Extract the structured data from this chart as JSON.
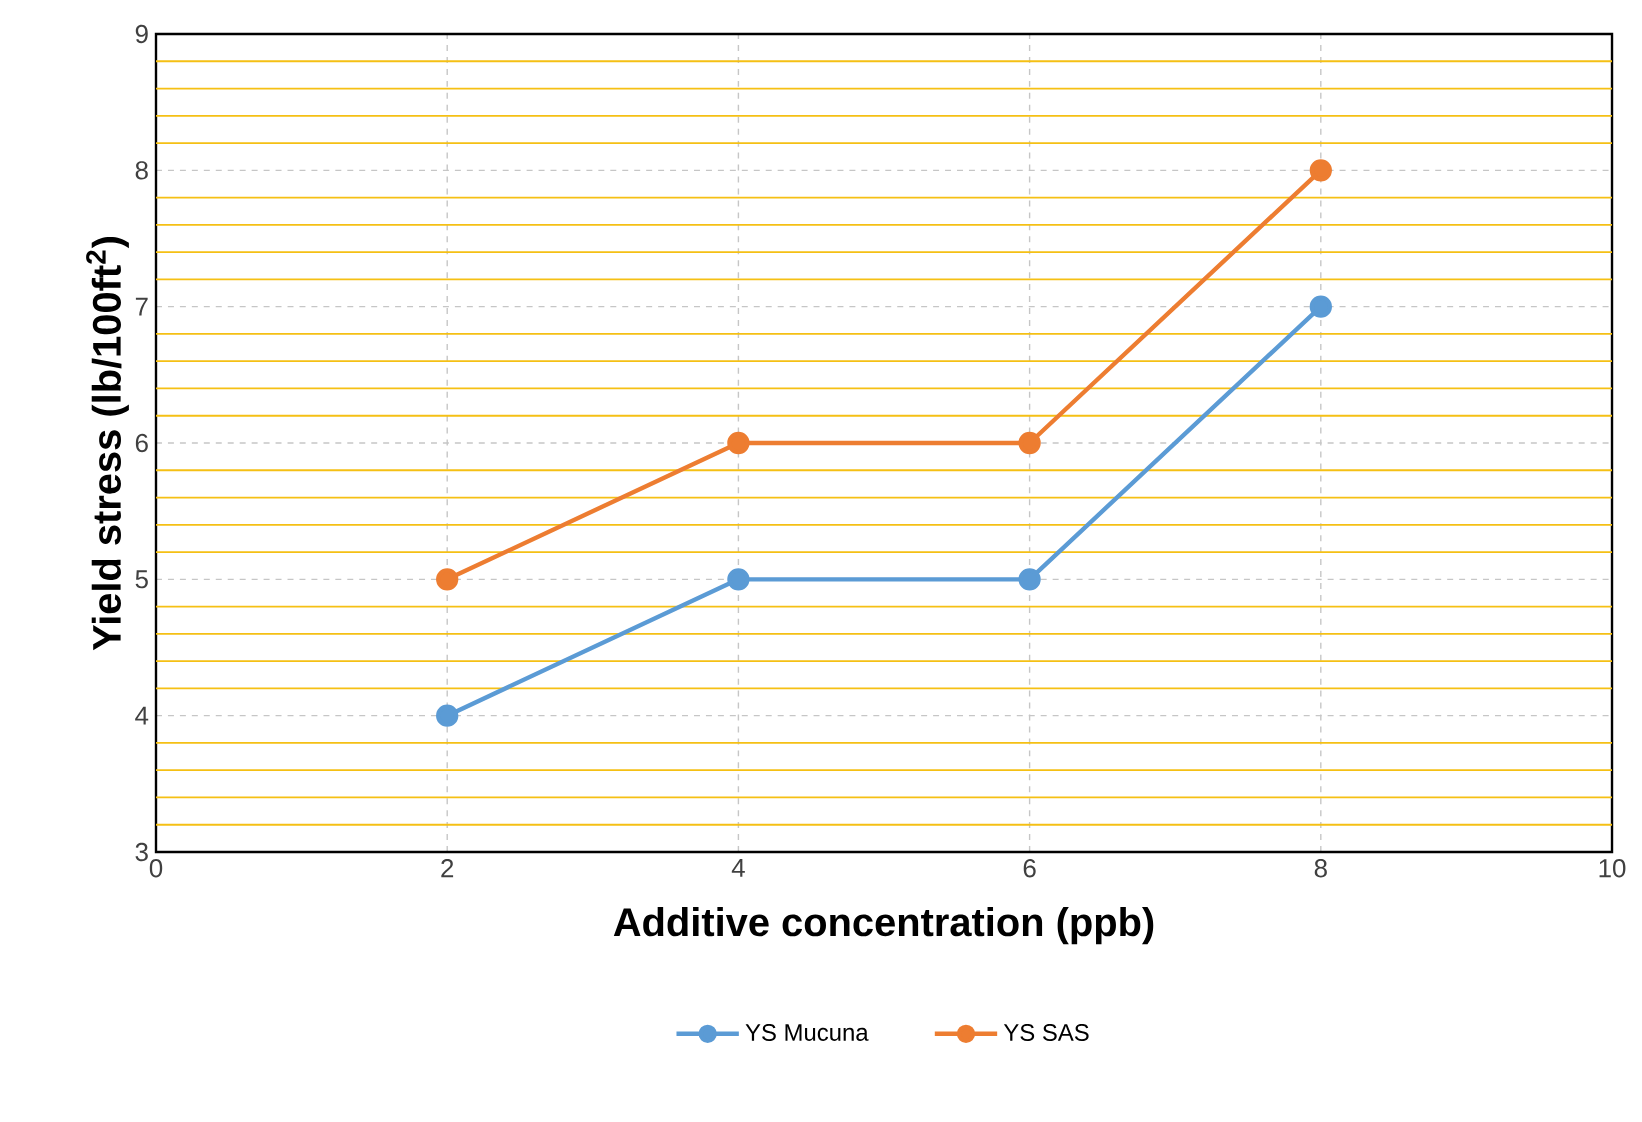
{
  "chart_data": {
    "type": "line",
    "xlabel": "Additive concentration (ppb)",
    "ylabel": "Yield stress (lb/100ft$^{2}$)",
    "x": [
      2,
      4,
      6,
      8
    ],
    "series": [
      {
        "name": "YS Mucuna",
        "color": "#5b9bd5",
        "values": [
          4,
          5,
          5,
          7
        ]
      },
      {
        "name": "YS SAS",
        "color": "#ed7d31",
        "values": [
          5,
          6,
          6,
          8
        ]
      }
    ],
    "xlim": [
      0,
      10
    ],
    "ylim": [
      3,
      9
    ],
    "xticks": [
      0,
      2,
      4,
      6,
      8,
      10
    ],
    "yticks": [
      3,
      {
        "value": 3.2,
        "label": null
      },
      {
        "value": 3.4,
        "label": null
      },
      {
        "value": 3.6,
        "label": null
      },
      {
        "value": 3.8,
        "label": null
      },
      4,
      {
        "value": 4.2,
        "label": null
      },
      {
        "value": 4.4,
        "label": null
      },
      {
        "value": 4.6,
        "label": null
      },
      {
        "value": 4.8,
        "label": null
      },
      5,
      {
        "value": 5.2,
        "label": null
      },
      {
        "value": 5.4,
        "label": null
      },
      {
        "value": 5.6,
        "label": null
      },
      {
        "value": 5.8,
        "label": null
      },
      6,
      {
        "value": 6.2,
        "label": null
      },
      {
        "value": 6.4,
        "label": null
      },
      {
        "value": 6.6,
        "label": null
      },
      {
        "value": 6.8,
        "label": null
      },
      7,
      {
        "value": 7.2,
        "label": null
      },
      {
        "value": 7.4,
        "label": null
      },
      {
        "value": 7.6,
        "label": null
      },
      {
        "value": 7.8,
        "label": null
      },
      8,
      {
        "value": 8.2,
        "label": null
      },
      {
        "value": 8.4,
        "label": null
      },
      {
        "value": 8.6,
        "label": null
      },
      {
        "value": 8.8,
        "label": null
      },
      9
    ],
    "grid": true,
    "legend": "bottom",
    "marker": "circle",
    "line_style": "solid"
  }
}
